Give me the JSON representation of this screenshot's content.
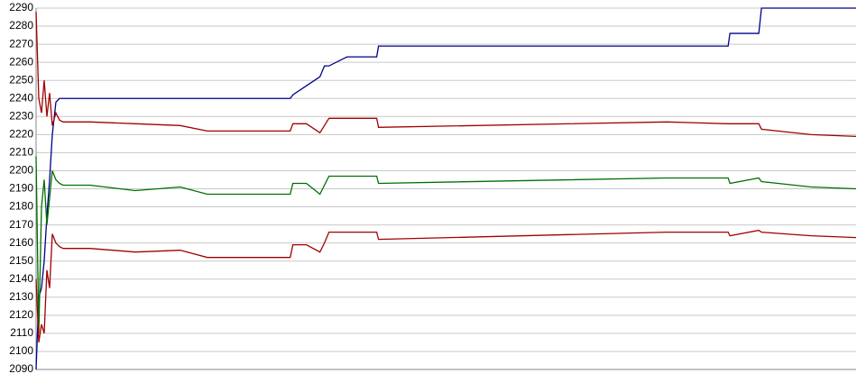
{
  "chart_data": {
    "type": "line",
    "x": [
      0,
      3,
      6,
      9,
      12,
      15,
      18,
      22,
      26,
      30,
      40,
      60,
      110,
      160,
      190,
      220,
      282,
      285,
      300,
      315,
      320,
      325,
      345,
      378,
      380,
      700,
      768,
      770,
      802,
      805,
      860,
      910
    ],
    "xlim": [
      0,
      910
    ],
    "ylim": [
      2090,
      2290
    ],
    "yticks": [
      2090,
      2100,
      2110,
      2120,
      2130,
      2140,
      2150,
      2160,
      2170,
      2180,
      2190,
      2200,
      2210,
      2220,
      2230,
      2240,
      2250,
      2260,
      2270,
      2280,
      2290
    ],
    "grid": true,
    "series": [
      {
        "color": "#00008b",
        "values": [
          2090,
          2130,
          2135,
          2150,
          2175,
          2195,
          2220,
          2238,
          2240,
          2240,
          2240,
          2240,
          2240,
          2240,
          2240,
          2240,
          2240,
          2242,
          2247,
          2252,
          2258,
          2258,
          2263,
          2263,
          2269,
          2269,
          2269,
          2276,
          2276,
          2290,
          2290,
          2290
        ]
      },
      {
        "color": "#a00000",
        "values": [
          2288,
          2240,
          2232,
          2250,
          2230,
          2243,
          2225,
          2232,
          2228,
          2227,
          2227,
          2227,
          2226,
          2225,
          2222,
          2222,
          2222,
          2226,
          2226,
          2221,
          2225,
          2229,
          2229,
          2229,
          2224,
          2227,
          2226,
          2226,
          2226,
          2223,
          2220,
          2219
        ]
      },
      {
        "color": "#007000",
        "values": [
          2208,
          2110,
          2180,
          2195,
          2170,
          2185,
          2200,
          2195,
          2193,
          2192,
          2192,
          2192,
          2189,
          2191,
          2187,
          2187,
          2187,
          2193,
          2193,
          2187,
          2192,
          2197,
          2197,
          2197,
          2193,
          2196,
          2196,
          2193,
          2196,
          2194,
          2191,
          2190
        ]
      },
      {
        "color": "#a00000",
        "values": [
          2140,
          2105,
          2115,
          2110,
          2145,
          2135,
          2165,
          2160,
          2158,
          2157,
          2157,
          2157,
          2155,
          2156,
          2152,
          2152,
          2152,
          2159,
          2159,
          2155,
          2160,
          2166,
          2166,
          2166,
          2162,
          2166,
          2166,
          2164,
          2167,
          2166,
          2164,
          2163
        ]
      }
    ]
  }
}
